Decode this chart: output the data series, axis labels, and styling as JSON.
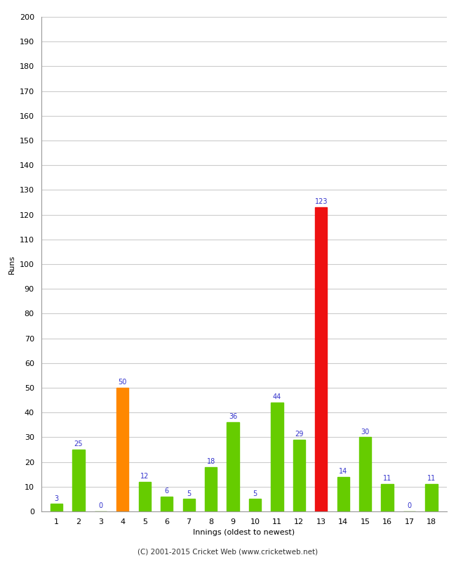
{
  "xlabel": "Innings (oldest to newest)",
  "ylabel": "Runs",
  "categories": [
    "1",
    "2",
    "3",
    "4",
    "5",
    "6",
    "7",
    "8",
    "9",
    "10",
    "11",
    "12",
    "13",
    "14",
    "15",
    "16",
    "17",
    "18"
  ],
  "values": [
    3,
    25,
    0,
    50,
    12,
    6,
    5,
    18,
    36,
    5,
    44,
    29,
    123,
    14,
    30,
    11,
    0,
    11
  ],
  "bar_colors": [
    "#66cc00",
    "#66cc00",
    "#66cc00",
    "#ff8800",
    "#66cc00",
    "#66cc00",
    "#66cc00",
    "#66cc00",
    "#66cc00",
    "#66cc00",
    "#66cc00",
    "#66cc00",
    "#ee1111",
    "#66cc00",
    "#66cc00",
    "#66cc00",
    "#66cc00",
    "#66cc00"
  ],
  "ylim": [
    0,
    200
  ],
  "yticks": [
    0,
    10,
    20,
    30,
    40,
    50,
    60,
    70,
    80,
    90,
    100,
    110,
    120,
    130,
    140,
    150,
    160,
    170,
    180,
    190,
    200
  ],
  "label_color": "#3333cc",
  "label_fontsize": 7,
  "axis_tick_fontsize": 8,
  "axis_label_fontsize": 8,
  "footer": "(C) 2001-2015 Cricket Web (www.cricketweb.net)",
  "background_color": "#ffffff",
  "grid_color": "#cccccc",
  "bar_width": 0.55
}
